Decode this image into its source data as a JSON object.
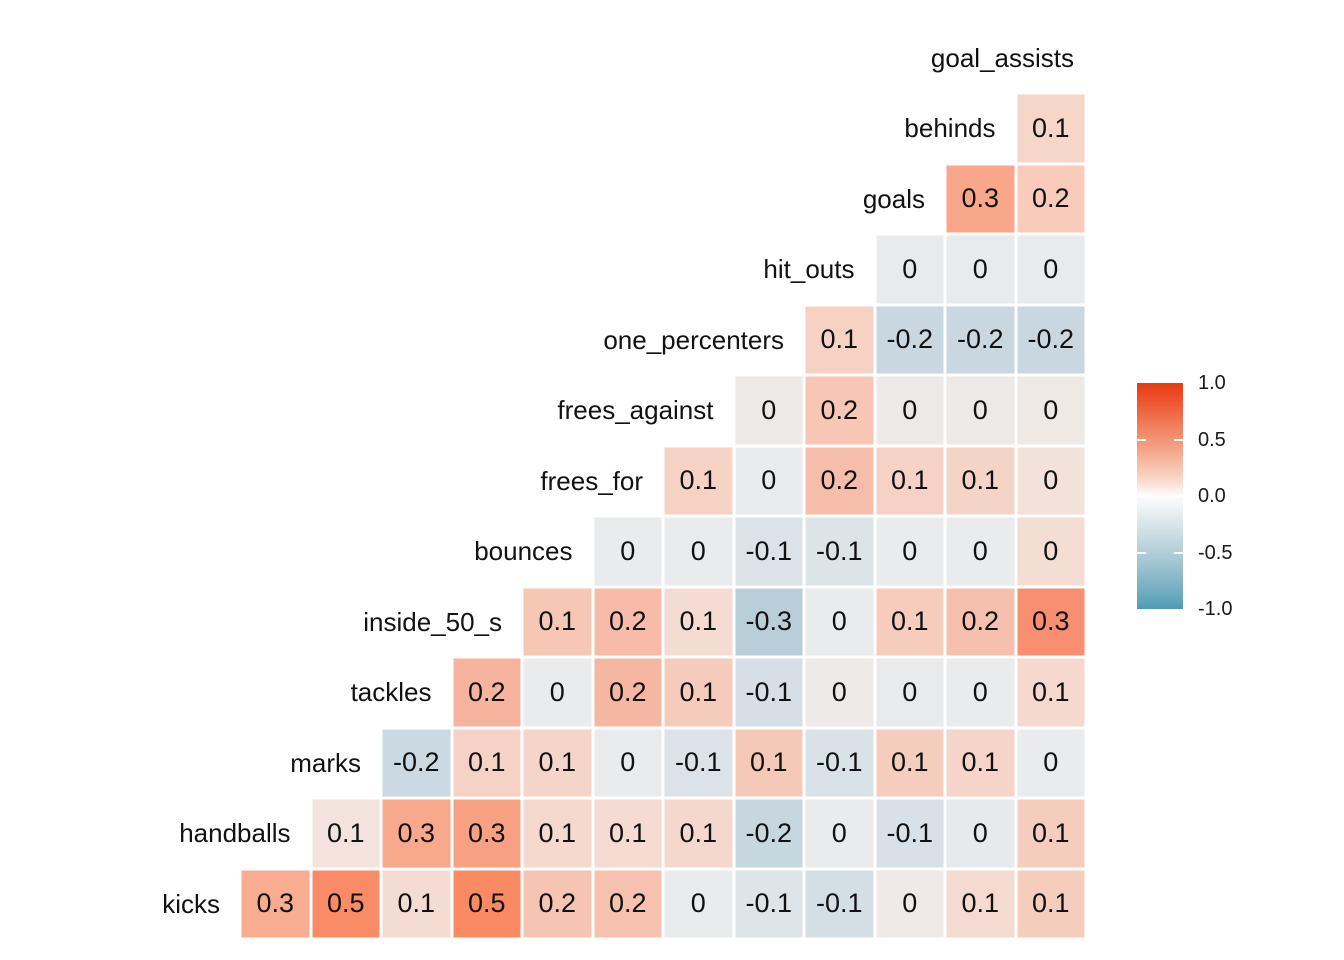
{
  "chart_data": {
    "type": "heatmap",
    "subtype": "correlation-matrix-lower-triangle",
    "title": "",
    "grid": false,
    "columns_left_to_right": [
      "handballs",
      "marks",
      "tackles",
      "inside_50_s",
      "bounces",
      "frees_for",
      "frees_against",
      "one_percenters",
      "hit_outs",
      "goals",
      "behinds",
      "goal_assists"
    ],
    "rows": [
      {
        "label": "goal_assists",
        "values": [],
        "fills": []
      },
      {
        "label": "behinds",
        "values": [
          "0.1"
        ],
        "fills": [
          "#F6D6C9"
        ]
      },
      {
        "label": "goals",
        "values": [
          "0.3",
          "0.2"
        ],
        "fills": [
          "#F8A78A",
          "#F8CBBB"
        ]
      },
      {
        "label": "hit_outs",
        "values": [
          "0",
          "0",
          "0"
        ],
        "fills": [
          "#E8EAEC",
          "#E8EAEC",
          "#E8EAEC"
        ]
      },
      {
        "label": "one_percenters",
        "values": [
          "0.1",
          "-0.2",
          "-0.2",
          "-0.2"
        ],
        "fills": [
          "#F6D2C4",
          "#C9D8E0",
          "#C9D8E0",
          "#C9D8E0"
        ]
      },
      {
        "label": "frees_against",
        "values": [
          "0",
          "0.2",
          "0",
          "0",
          "0"
        ],
        "fills": [
          "#EDE9E6",
          "#F7C6B4",
          "#EDE9E6",
          "#EDE9E6",
          "#EFE9E5"
        ]
      },
      {
        "label": "frees_for",
        "values": [
          "0.1",
          "0",
          "0.2",
          "0.1",
          "0.1",
          "0"
        ],
        "fills": [
          "#F6D2C4",
          "#E9EBEC",
          "#F6BDAA",
          "#F5D2C5",
          "#F5D4C8",
          "#F3E2DA"
        ]
      },
      {
        "label": "bounces",
        "values": [
          "0",
          "0",
          "-0.1",
          "-0.1",
          "0",
          "0",
          "0"
        ],
        "fills": [
          "#E9EBEC",
          "#E9EBEC",
          "#DBE3E8",
          "#DCE4E8",
          "#E9EBEC",
          "#E9EBEC",
          "#F4DDD3"
        ]
      },
      {
        "label": "inside_50_s",
        "values": [
          "0.1",
          "0.2",
          "0.1",
          "-0.3",
          "0",
          "0.1",
          "0.2",
          "0.3"
        ],
        "fills": [
          "#F6C7B5",
          "#F6BCA9",
          "#F5DCD2",
          "#BACEDA",
          "#E9EBEC",
          "#F6CDBC",
          "#F6C0AE",
          "#F78F70"
        ]
      },
      {
        "label": "tackles",
        "values": [
          "0.2",
          "0",
          "0.2",
          "0.1",
          "-0.1",
          "0",
          "0",
          "0",
          "0.1"
        ],
        "fills": [
          "#F6B49E",
          "#E9EBEC",
          "#F6B7A2",
          "#F5CCBB",
          "#D5DFE5",
          "#EDEAE7",
          "#E8EAEC",
          "#EAEBEC",
          "#F5D9CE"
        ]
      },
      {
        "label": "marks",
        "values": [
          "-0.2",
          "0.1",
          "0.1",
          "0",
          "-0.1",
          "0.1",
          "-0.1",
          "0.1",
          "0.1",
          "0"
        ],
        "fills": [
          "#CBDAE2",
          "#F5D2C5",
          "#F5D5C9",
          "#E9EBEC",
          "#DBE3E8",
          "#F5C9B7",
          "#D9E2E7",
          "#F5CDBD",
          "#F5D5C9",
          "#EAEBEC"
        ]
      },
      {
        "label": "handballs",
        "values": [
          "0.1",
          "0.3",
          "0.3",
          "0.1",
          "0.1",
          "0.1",
          "-0.2",
          "0",
          "-0.1",
          "0",
          "0.1"
        ],
        "fills": [
          "#F3E3DC",
          "#F9A98B",
          "#F8A082",
          "#F5D9CE",
          "#F5DBD2",
          "#F5D8CD",
          "#C7D7DF",
          "#E9EBEC",
          "#D8E1E7",
          "#E7EAEC",
          "#F5CDBD"
        ]
      },
      {
        "label": "kicks",
        "values": [
          "0.3",
          "0.5",
          "0.1",
          "0.5",
          "0.2",
          "0.2",
          "0",
          "-0.1",
          "-0.1",
          "0",
          "0.1",
          "0.1"
        ],
        "fills": [
          "#F8AD90",
          "#F98B66",
          "#F5DCD2",
          "#F98A64",
          "#F6C4B2",
          "#F6C2AF",
          "#E9EBEC",
          "#DEE5E9",
          "#D4DFE5",
          "#EFEAE8",
          "#F4DBD2",
          "#F5CDBD"
        ]
      }
    ],
    "colorscale": {
      "min": -1.0,
      "max": 1.0,
      "low": "#4D9CB4",
      "mid": "#FFFFFF",
      "high": "#E83A10"
    },
    "legend": {
      "position": "right",
      "ticks": [
        {
          "label": "1.0",
          "value": 1.0
        },
        {
          "label": "0.5",
          "value": 0.5
        },
        {
          "label": "0.0",
          "value": 0.0
        },
        {
          "label": "-0.5",
          "value": -0.5
        },
        {
          "label": "-1.0",
          "value": -1.0
        }
      ],
      "gradient_stops": [
        {
          "pos": 0.0,
          "color": "#E83A10"
        },
        {
          "pos": 0.08,
          "color": "#EC5530"
        },
        {
          "pos": 0.2,
          "color": "#F0825F"
        },
        {
          "pos": 0.32,
          "color": "#F5AE94"
        },
        {
          "pos": 0.43,
          "color": "#FAD9CC"
        },
        {
          "pos": 0.5,
          "color": "#FDFDFD"
        },
        {
          "pos": 0.57,
          "color": "#E9F0F1"
        },
        {
          "pos": 0.68,
          "color": "#C8DAE2"
        },
        {
          "pos": 0.8,
          "color": "#A0C5D2"
        },
        {
          "pos": 0.92,
          "color": "#74ADC1"
        },
        {
          "pos": 1.0,
          "color": "#4D9CB4"
        }
      ]
    }
  }
}
